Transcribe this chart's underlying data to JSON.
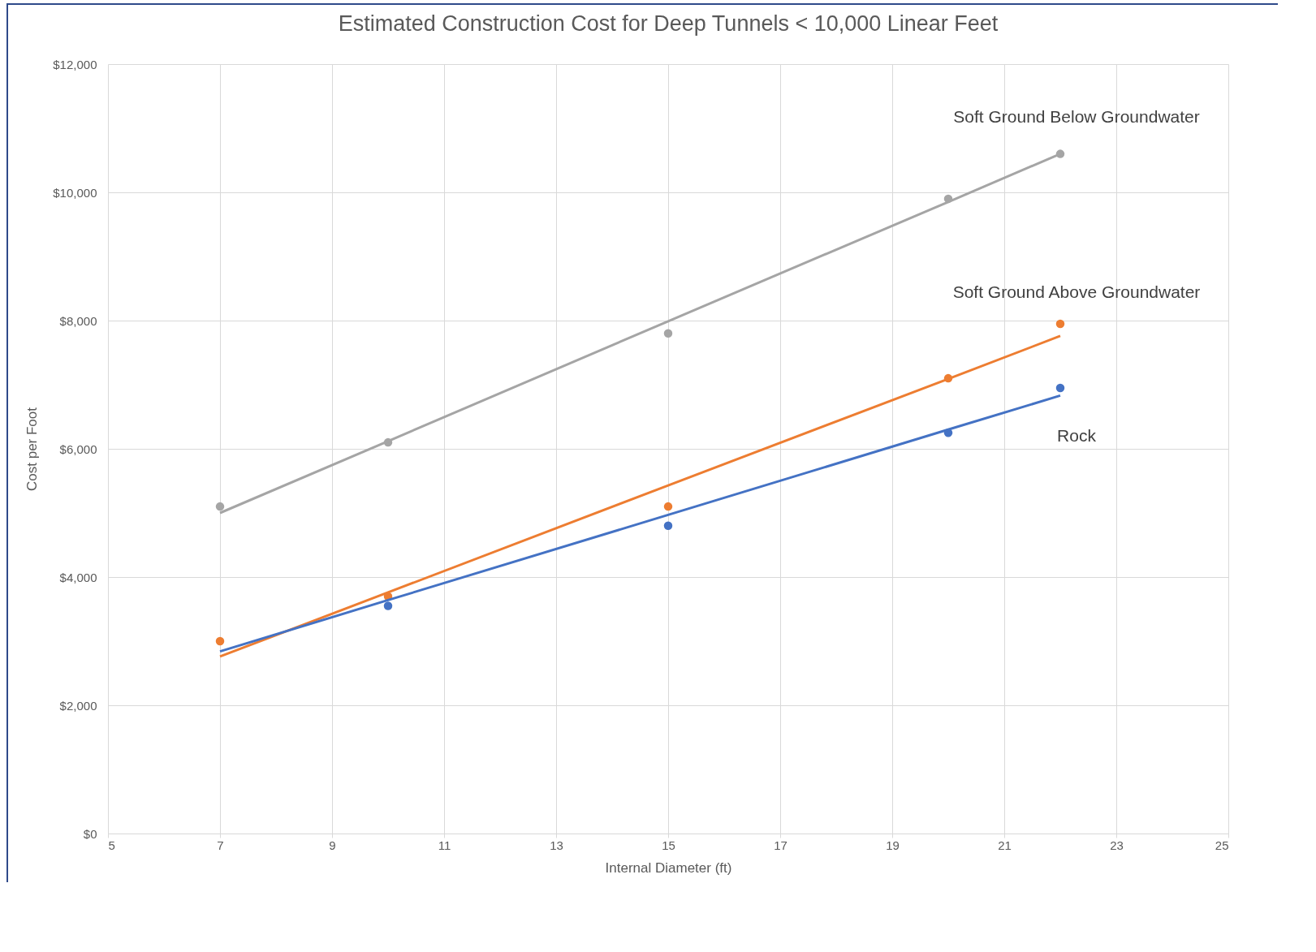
{
  "chart_data": {
    "type": "scatter",
    "title": "Estimated Construction Cost for Deep Tunnels < 10,000 Linear Feet",
    "xlabel": "Internal Diameter (ft)",
    "ylabel": "Cost per Foot",
    "x": [
      7,
      10,
      15,
      20,
      22
    ],
    "series": [
      {
        "name": "Soft Ground Below Groundwater",
        "color": "#a5a5a5",
        "values": [
          5100,
          6100,
          7800,
          9900,
          10600
        ]
      },
      {
        "name": "Soft Ground Above Groundwater",
        "color": "#ed7d31",
        "values": [
          3000,
          3700,
          5100,
          7100,
          7950
        ]
      },
      {
        "name": "Rock",
        "color": "#4472c4",
        "values": [
          null,
          3550,
          4800,
          6250,
          6950
        ]
      },
      {
        "type": "line",
        "marker": "none",
        "color": "#a5a5a5",
        "values": [
          5000,
          6120,
          7990,
          9850,
          10600
        ]
      },
      {
        "type": "line",
        "marker": "none",
        "color": "#ed7d31",
        "values": [
          2760,
          3760,
          5430,
          7090,
          7760
        ]
      },
      {
        "type": "line",
        "marker": "none",
        "color": "#4472c4",
        "values": [
          2840,
          3640,
          4970,
          6300,
          6830
        ]
      }
    ],
    "xlim": [
      5,
      25
    ],
    "xticks": [
      5,
      7,
      9,
      11,
      13,
      15,
      17,
      19,
      21,
      23,
      25
    ],
    "ylim": [
      0,
      12000
    ],
    "yticks": [
      {
        "value": 0,
        "label": "$0"
      },
      {
        "value": 2000,
        "label": "$2,000"
      },
      {
        "value": 4000,
        "label": "$4,000"
      },
      {
        "value": 6000,
        "label": "$6,000"
      },
      {
        "value": 8000,
        "label": "$8,000"
      },
      {
        "value": 10000,
        "label": "$10,000"
      },
      {
        "value": 12000,
        "label": "$12,000"
      }
    ],
    "grid": true,
    "marker": "circle"
  }
}
